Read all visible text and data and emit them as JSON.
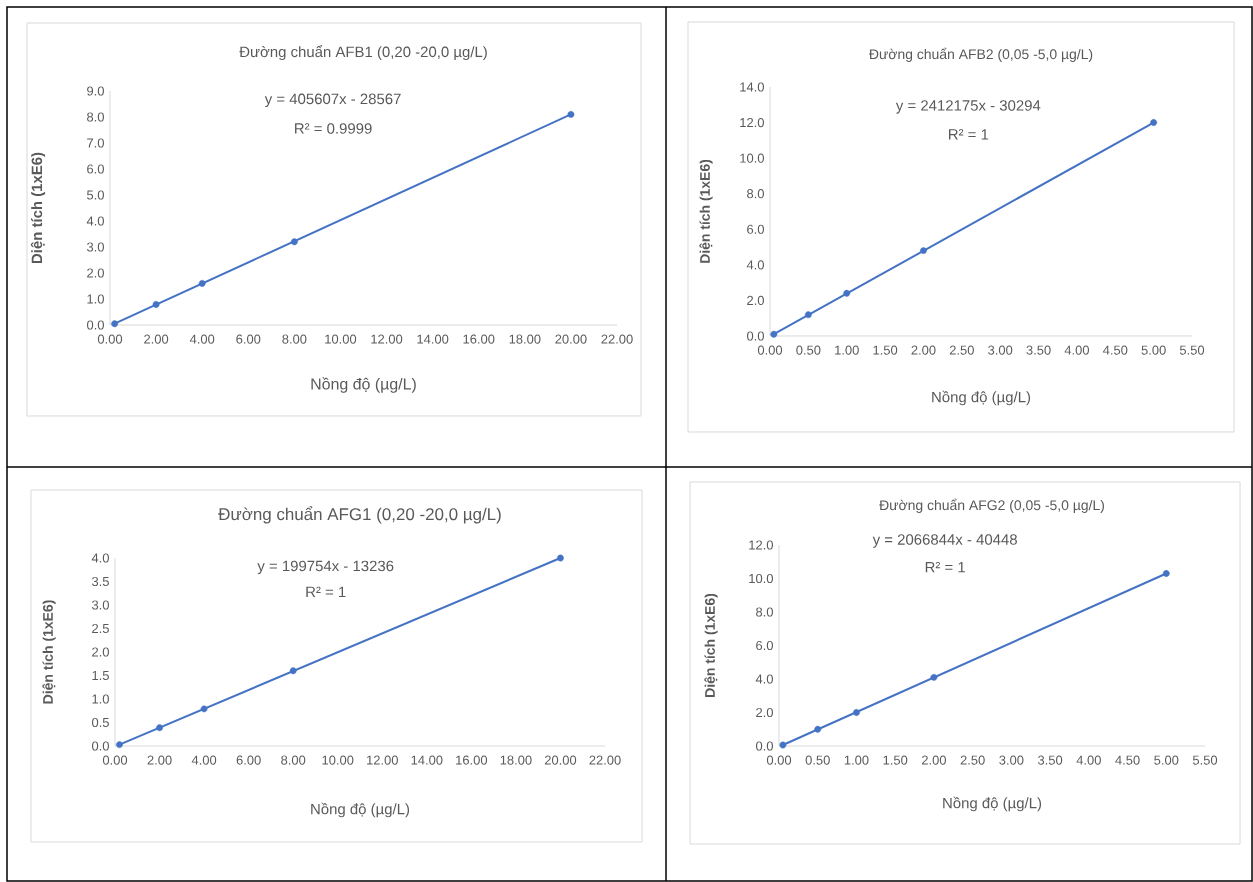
{
  "chart_data": [
    {
      "type": "scatter",
      "title": "Đường chuẩn AFB1 (0,20 -20,0 µg/L)",
      "xlabel": "Nồng độ (µg/L)",
      "ylabel": "Diện tích  (1xE6)",
      "annotations": [
        "y = 405607x - 28567",
        "R² = 0.9999"
      ],
      "marker": "circle",
      "xlim": [
        0,
        22
      ],
      "xticks": [
        {
          "value": 0,
          "label": "0.00"
        },
        {
          "value": 2,
          "label": "2.00"
        },
        {
          "value": 4,
          "label": "4.00"
        },
        {
          "value": 6,
          "label": "6.00"
        },
        {
          "value": 8,
          "label": "8.00"
        },
        {
          "value": 10,
          "label": "10.00"
        },
        {
          "value": 12,
          "label": "12.00"
        },
        {
          "value": 14,
          "label": "14.00"
        },
        {
          "value": 16,
          "label": "16.00"
        },
        {
          "value": 18,
          "label": "18.00"
        },
        {
          "value": 20,
          "label": "20.00"
        },
        {
          "value": 22,
          "label": "22.00"
        }
      ],
      "ylim": [
        0,
        9
      ],
      "yticks": [
        {
          "value": 0,
          "label": "0.0"
        },
        {
          "value": 1,
          "label": "1.0"
        },
        {
          "value": 2,
          "label": "2.0"
        },
        {
          "value": 3,
          "label": "3.0"
        },
        {
          "value": 4,
          "label": "4.0"
        },
        {
          "value": 5,
          "label": "5.0"
        },
        {
          "value": 6,
          "label": "6.0"
        },
        {
          "value": 7,
          "label": "7.0"
        },
        {
          "value": 8,
          "label": "8.0"
        },
        {
          "value": 9,
          "label": "9.0"
        }
      ],
      "series": [
        {
          "color": "#4472c4",
          "x": [
            0.2,
            2,
            4,
            8,
            20
          ],
          "values": [
            0.05,
            0.79,
            1.6,
            3.2,
            8.1
          ]
        },
        {
          "type": "line",
          "marker": "none",
          "color": "#4472c4",
          "x": [
            0.2,
            20
          ],
          "values": [
            0.05,
            8.1
          ]
        }
      ]
    },
    {
      "type": "scatter",
      "title": "Đường chuẩn AFB2 (0,05 -5,0 µg/L)",
      "xlabel": "Nồng độ (µg/L)",
      "ylabel": "Diện tích  (1xE6)",
      "annotations": [
        "y = 2412175x - 30294",
        "R² = 1"
      ],
      "marker": "circle",
      "xlim": [
        0,
        5.5
      ],
      "xticks": [
        {
          "value": 0,
          "label": "0.00"
        },
        {
          "value": 0.5,
          "label": "0.50"
        },
        {
          "value": 1,
          "label": "1.00"
        },
        {
          "value": 1.5,
          "label": "1.50"
        },
        {
          "value": 2,
          "label": "2.00"
        },
        {
          "value": 2.5,
          "label": "2.50"
        },
        {
          "value": 3,
          "label": "3.00"
        },
        {
          "value": 3.5,
          "label": "3.50"
        },
        {
          "value": 4,
          "label": "4.00"
        },
        {
          "value": 4.5,
          "label": "4.50"
        },
        {
          "value": 5,
          "label": "5.00"
        },
        {
          "value": 5.5,
          "label": "5.50"
        }
      ],
      "ylim": [
        0,
        14
      ],
      "yticks": [
        {
          "value": 0,
          "label": "0.0"
        },
        {
          "value": 2,
          "label": "2.0"
        },
        {
          "value": 4,
          "label": "4.0"
        },
        {
          "value": 6,
          "label": "6.0"
        },
        {
          "value": 8,
          "label": "8.0"
        },
        {
          "value": 10,
          "label": "10.0"
        },
        {
          "value": 12,
          "label": "12.0"
        },
        {
          "value": 14,
          "label": "14.0"
        }
      ],
      "series": [
        {
          "color": "#4472c4",
          "x": [
            0.05,
            0.5,
            1,
            2,
            5
          ],
          "values": [
            0.1,
            1.2,
            2.4,
            4.8,
            12.0
          ]
        },
        {
          "type": "line",
          "marker": "none",
          "color": "#4472c4",
          "x": [
            0.05,
            5
          ],
          "values": [
            0.1,
            12.0
          ]
        }
      ]
    },
    {
      "type": "scatter",
      "title": "Đường chuẩn AFG1 (0,20 -20,0 µg/L)",
      "xlabel": "Nồng độ (µg/L)",
      "ylabel": "Diện tích  (1xE6)",
      "annotations": [
        "y = 199754x - 13236",
        "R² = 1"
      ],
      "marker": "circle",
      "xlim": [
        0,
        22
      ],
      "xticks": [
        {
          "value": 0,
          "label": "0.00"
        },
        {
          "value": 2,
          "label": "2.00"
        },
        {
          "value": 4,
          "label": "4.00"
        },
        {
          "value": 6,
          "label": "6.00"
        },
        {
          "value": 8,
          "label": "8.00"
        },
        {
          "value": 10,
          "label": "10.00"
        },
        {
          "value": 12,
          "label": "12.00"
        },
        {
          "value": 14,
          "label": "14.00"
        },
        {
          "value": 16,
          "label": "16.00"
        },
        {
          "value": 18,
          "label": "18.00"
        },
        {
          "value": 20,
          "label": "20.00"
        },
        {
          "value": 22,
          "label": "22.00"
        }
      ],
      "ylim": [
        0,
        4
      ],
      "yticks": [
        {
          "value": 0,
          "label": "0.0"
        },
        {
          "value": 0.5,
          "label": "0.5"
        },
        {
          "value": 1,
          "label": "1.0"
        },
        {
          "value": 1.5,
          "label": "1.5"
        },
        {
          "value": 2,
          "label": "2.0"
        },
        {
          "value": 2.5,
          "label": "2.5"
        },
        {
          "value": 3,
          "label": "3.0"
        },
        {
          "value": 3.5,
          "label": "3.5"
        },
        {
          "value": 4,
          "label": "4.0"
        }
      ],
      "series": [
        {
          "color": "#4472c4",
          "x": [
            0.2,
            2,
            4,
            8,
            20
          ],
          "values": [
            0.03,
            0.39,
            0.79,
            1.6,
            4.0
          ]
        },
        {
          "type": "line",
          "marker": "none",
          "color": "#4472c4",
          "x": [
            0.2,
            20
          ],
          "values": [
            0.03,
            4.0
          ]
        }
      ]
    },
    {
      "type": "scatter",
      "title": "Đường chuẩn AFG2 (0,05 -5,0 µg/L)",
      "xlabel": "Nồng độ (µg/L)",
      "ylabel": "Diện tích  (1xE6)",
      "annotations": [
        "y = 2066844x - 40448",
        "R² = 1"
      ],
      "marker": "circle",
      "xlim": [
        0,
        5.5
      ],
      "xticks": [
        {
          "value": 0,
          "label": "0.00"
        },
        {
          "value": 0.5,
          "label": "0.50"
        },
        {
          "value": 1,
          "label": "1.00"
        },
        {
          "value": 1.5,
          "label": "1.50"
        },
        {
          "value": 2,
          "label": "2.00"
        },
        {
          "value": 2.5,
          "label": "2.50"
        },
        {
          "value": 3,
          "label": "3.00"
        },
        {
          "value": 3.5,
          "label": "3.50"
        },
        {
          "value": 4,
          "label": "4.00"
        },
        {
          "value": 4.5,
          "label": "4.50"
        },
        {
          "value": 5,
          "label": "5.00"
        },
        {
          "value": 5.5,
          "label": "5.50"
        }
      ],
      "ylim": [
        0,
        12
      ],
      "yticks": [
        {
          "value": 0,
          "label": "0.0"
        },
        {
          "value": 2,
          "label": "2.0"
        },
        {
          "value": 4,
          "label": "4.0"
        },
        {
          "value": 6,
          "label": "6.0"
        },
        {
          "value": 8,
          "label": "8.0"
        },
        {
          "value": 10,
          "label": "10.0"
        },
        {
          "value": 12,
          "label": "12.0"
        }
      ],
      "series": [
        {
          "color": "#4472c4",
          "x": [
            0.05,
            0.5,
            1,
            2,
            5
          ],
          "values": [
            0.06,
            1.0,
            2.0,
            4.1,
            10.3
          ]
        },
        {
          "type": "line",
          "marker": "none",
          "color": "#4472c4",
          "x": [
            0.05,
            5
          ],
          "values": [
            0.06,
            10.3
          ]
        }
      ]
    }
  ]
}
